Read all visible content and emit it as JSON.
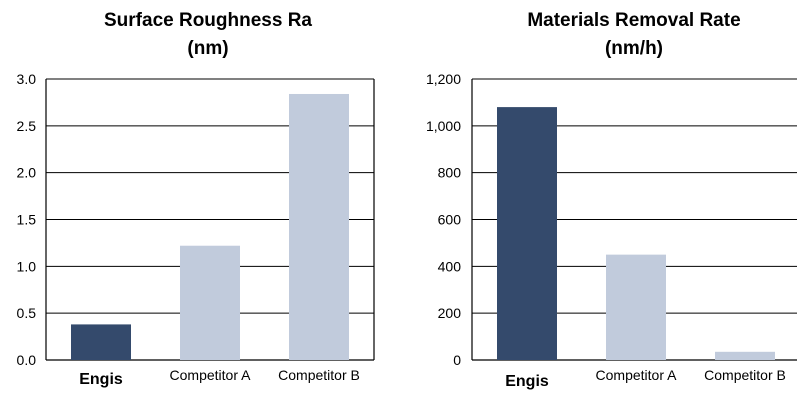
{
  "chart_data": [
    {
      "type": "bar",
      "title_lines": [
        "Surface Roughness Ra",
        "(nm)"
      ],
      "categories": [
        "Engis",
        "Competitor A",
        "Competitor B"
      ],
      "values": [
        0.38,
        1.22,
        2.84
      ],
      "ylim": [
        0,
        3.0
      ],
      "yticks": [
        "0.0",
        "0.5",
        "1.0",
        "1.5",
        "2.0",
        "2.5",
        "3.0"
      ],
      "ytick_values": [
        0,
        0.5,
        1.0,
        1.5,
        2.0,
        2.5,
        3.0
      ],
      "grid": true,
      "bar_colors": [
        "#344a6c",
        "#c1cbdc",
        "#c1cbdc"
      ]
    },
    {
      "type": "bar",
      "title_lines": [
        "Materials Removal Rate",
        "(nm/h)"
      ],
      "categories": [
        "Engis",
        "Competitor A",
        "Competitor B"
      ],
      "values": [
        1080,
        450,
        35
      ],
      "ylim": [
        0,
        1200
      ],
      "yticks": [
        "0",
        "200",
        "400",
        "600",
        "800",
        "1,000",
        "1,200"
      ],
      "ytick_values": [
        0,
        200,
        400,
        600,
        800,
        1000,
        1200
      ],
      "grid": true,
      "bar_colors": [
        "#344a6c",
        "#c1cbdc",
        "#c1cbdc"
      ]
    }
  ]
}
